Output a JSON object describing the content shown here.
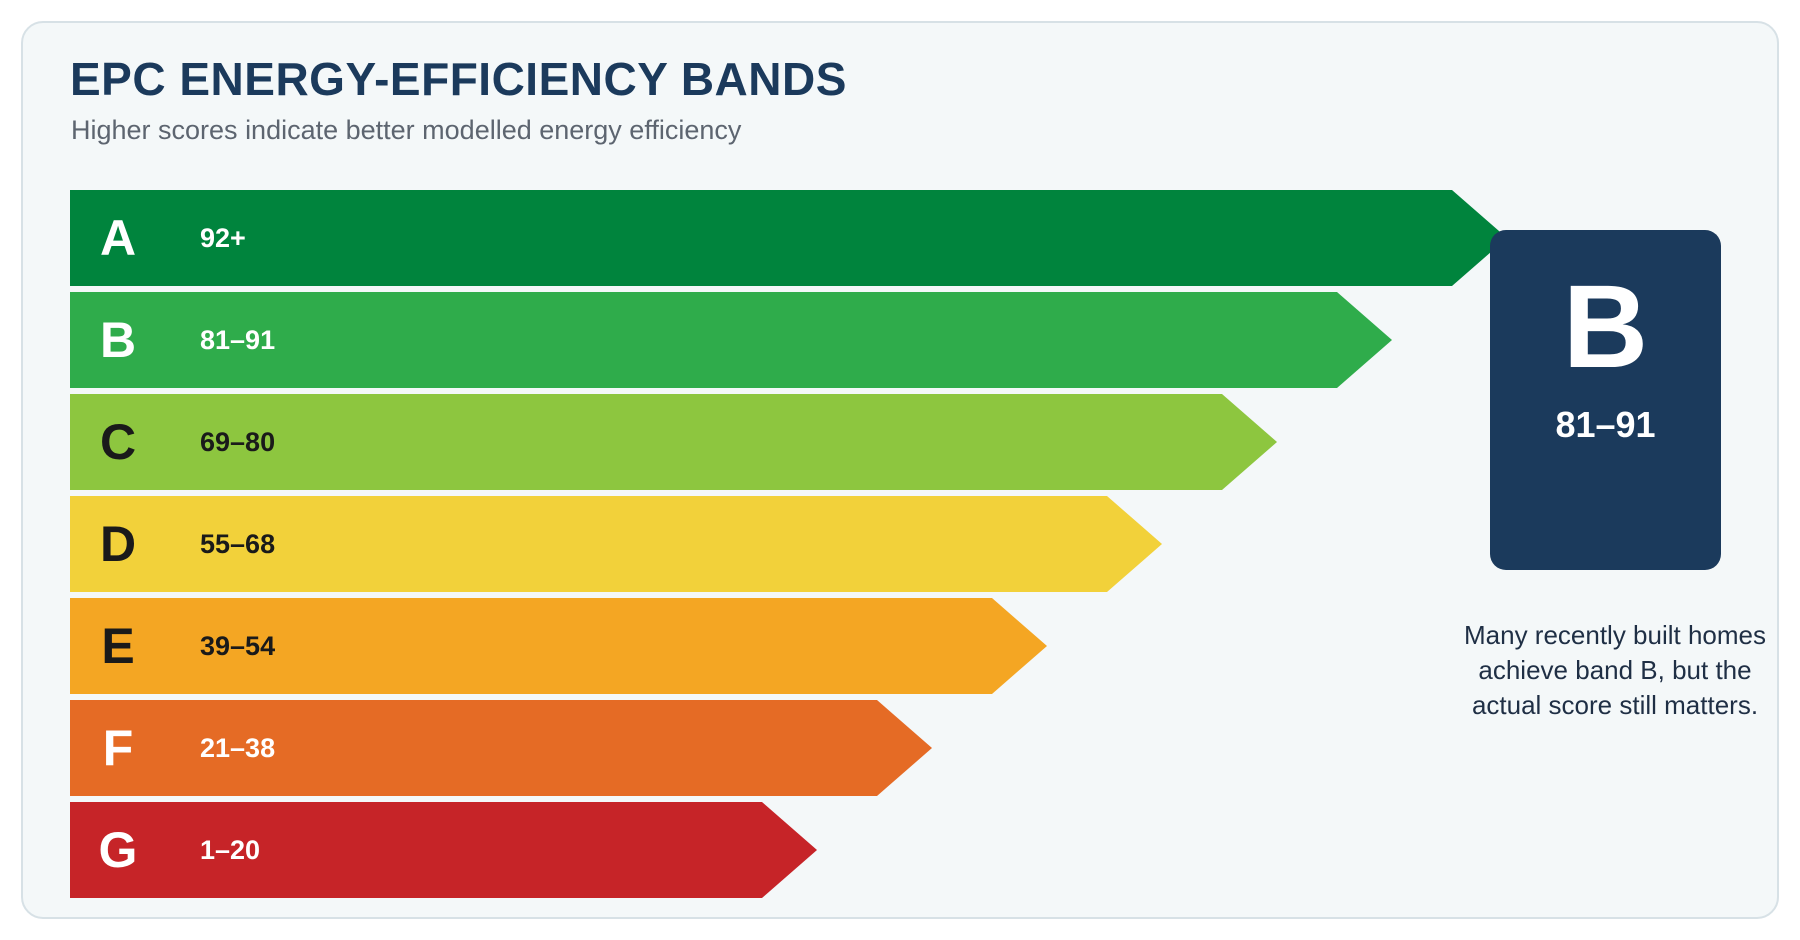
{
  "header": {
    "title": "EPC ENERGY-EFFICIENCY BANDS",
    "subtitle": "Higher scores indicate better modelled energy efficiency"
  },
  "bands": [
    {
      "letter": "A",
      "range": "92+",
      "color": "#00843d",
      "text_color": "#ffffff"
    },
    {
      "letter": "B",
      "range": "81–91",
      "color": "#2fac4b",
      "text_color": "#ffffff"
    },
    {
      "letter": "C",
      "range": "69–80",
      "color": "#8dc63f",
      "text_color": "#1a1a1a"
    },
    {
      "letter": "D",
      "range": "55–68",
      "color": "#f2d13a",
      "text_color": "#1a1a1a"
    },
    {
      "letter": "E",
      "range": "39–54",
      "color": "#f4a623",
      "text_color": "#1a1a1a"
    },
    {
      "letter": "F",
      "range": "21–38",
      "color": "#e56b25",
      "text_color": "#ffffff"
    },
    {
      "letter": "G",
      "range": "1–20",
      "color": "#c62428",
      "text_color": "#ffffff"
    }
  ],
  "rating": {
    "letter": "B",
    "range": "81–91",
    "color": "#1b3a5c"
  },
  "note": "Many recently built homes achieve band B, but the actual score still matters."
}
